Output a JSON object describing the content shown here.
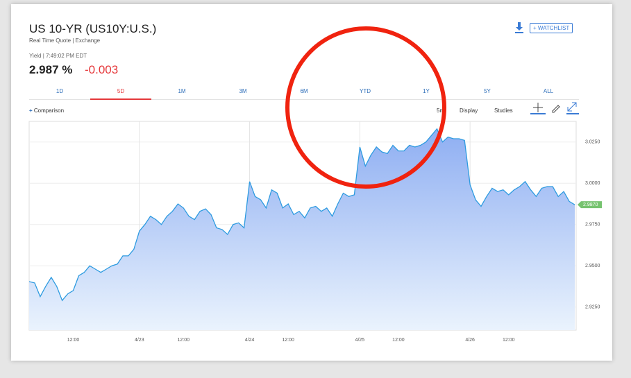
{
  "header": {
    "title": "US 10-YR (US10Y:U.S.)",
    "subtitle": "Real Time Quote | Exchange",
    "yield_label": "Yield | 7:49:02 PM EDT",
    "price": "2.987 %",
    "change": "-0.003",
    "watchlist": "+ WATCHLIST"
  },
  "tabs": [
    "1D",
    "5D",
    "1M",
    "3M",
    "6M",
    "YTD",
    "1Y",
    "5Y",
    "ALL"
  ],
  "toolbar": {
    "comparison": "Comparison",
    "interval": "5m",
    "display": "Display",
    "studies": "Studies"
  },
  "chart_data": {
    "type": "area",
    "color": "#2e9be0",
    "categories": [
      null,
      null,
      null,
      null,
      null,
      null,
      null,
      null,
      "12:00",
      null,
      null,
      null,
      null,
      null,
      null,
      null,
      null,
      null,
      null,
      null,
      "4/23",
      null,
      null,
      null,
      null,
      null,
      null,
      null,
      "12:00",
      null,
      null,
      null,
      null,
      null,
      null,
      null,
      null,
      null,
      null,
      null,
      "4/24",
      null,
      null,
      null,
      null,
      null,
      null,
      "12:00",
      null,
      null,
      null,
      null,
      null,
      null,
      null,
      null,
      null,
      null,
      null,
      null,
      "4/25",
      null,
      null,
      null,
      null,
      null,
      null,
      "12:00",
      null,
      null,
      null,
      null,
      null,
      null,
      null,
      null,
      null,
      null,
      null,
      null,
      "4/26",
      null,
      null,
      null,
      null,
      null,
      null,
      "12:00",
      null,
      null,
      null,
      null,
      null,
      null,
      null,
      null,
      null,
      null,
      null,
      null
    ],
    "values": [
      2.9404,
      2.9396,
      2.9313,
      2.9375,
      2.943,
      2.9375,
      2.929,
      2.933,
      2.935,
      2.944,
      2.946,
      2.95,
      2.948,
      2.946,
      2.948,
      2.95,
      2.951,
      2.956,
      2.956,
      2.96,
      2.971,
      2.975,
      2.98,
      2.978,
      2.975,
      2.98,
      2.983,
      2.9875,
      2.985,
      2.98,
      2.978,
      2.983,
      2.9845,
      2.981,
      2.973,
      2.972,
      2.969,
      2.975,
      2.976,
      2.973,
      3.001,
      2.992,
      2.99,
      2.985,
      2.996,
      2.994,
      2.985,
      2.9875,
      2.981,
      2.983,
      2.979,
      2.985,
      2.986,
      2.983,
      2.985,
      2.98,
      2.9875,
      2.994,
      2.992,
      2.993,
      3.022,
      3.0104,
      3.017,
      3.022,
      3.019,
      3.018,
      3.023,
      3.0196,
      3.0196,
      3.023,
      3.022,
      3.023,
      3.025,
      3.029,
      3.033,
      3.025,
      3.028,
      3.027,
      3.027,
      3.026,
      2.999,
      2.99,
      2.986,
      2.992,
      2.997,
      2.995,
      2.996,
      2.993,
      2.996,
      2.998,
      3.001,
      2.996,
      2.992,
      2.997,
      2.998,
      2.998,
      2.992,
      2.995,
      2.989,
      2.987
    ],
    "ylim": [
      2.911,
      3.0375
    ],
    "yticks": [
      {
        "value": 2.925,
        "label": "2.9250"
      },
      {
        "value": 2.95,
        "label": "2.9500"
      },
      {
        "value": 2.975,
        "label": "2.9750"
      },
      {
        "value": 3,
        "label": "3.0000"
      },
      {
        "value": 3.025,
        "label": "3.0250"
      }
    ],
    "last_price": {
      "value": 2.987,
      "label": "2.9870"
    },
    "grid": true
  }
}
